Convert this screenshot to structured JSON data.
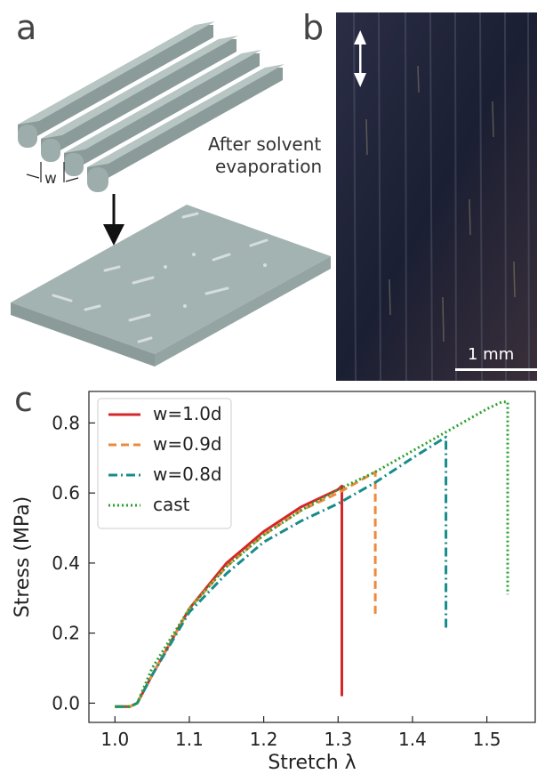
{
  "panels": {
    "a": {
      "label": "a",
      "annotation_line1": "After solvent",
      "annotation_line2": "evaporation",
      "width_symbol": "w"
    },
    "b": {
      "label": "b",
      "scalebar_label": "1 mm"
    },
    "c": {
      "label": "c"
    }
  },
  "colors": {
    "filament": "#a3b3b1",
    "filament_dark": "#8a9b99",
    "micrograph_bg": "#1c2033"
  },
  "chart_data": {
    "type": "line",
    "title": "",
    "xlabel": "Stretch λ",
    "ylabel": "Stress (MPa)",
    "xlim": [
      0.965,
      1.565
    ],
    "ylim": [
      -0.055,
      0.89
    ],
    "xticks": [
      1.0,
      1.1,
      1.2,
      1.3,
      1.4,
      1.5
    ],
    "xtick_labels": [
      "1.0",
      "1.1",
      "1.2",
      "1.3",
      "1.4",
      "1.5"
    ],
    "yticks": [
      0.0,
      0.2,
      0.4,
      0.6,
      0.8
    ],
    "ytick_labels": [
      "0.0",
      "0.2",
      "0.4",
      "0.6",
      "0.8"
    ],
    "grid": false,
    "legend_position": "top-left",
    "series": [
      {
        "name": "w=1.0d",
        "color": "#d62728",
        "style": "solid",
        "x": [
          1.0,
          1.02,
          1.03,
          1.05,
          1.1,
          1.15,
          1.2,
          1.25,
          1.3,
          1.305,
          1.305
        ],
        "y": [
          -0.01,
          -0.01,
          0.0,
          0.08,
          0.27,
          0.4,
          0.49,
          0.56,
          0.61,
          0.62,
          0.02
        ]
      },
      {
        "name": "w=0.9d",
        "color": "#ee8a3c",
        "style": "dashed",
        "x": [
          1.0,
          1.02,
          1.03,
          1.05,
          1.1,
          1.15,
          1.2,
          1.25,
          1.3,
          1.35,
          1.35
        ],
        "y": [
          -0.01,
          -0.01,
          0.0,
          0.08,
          0.27,
          0.39,
          0.48,
          0.55,
          0.6,
          0.66,
          0.25
        ]
      },
      {
        "name": "w=0.8d",
        "color": "#1a8b8b",
        "style": "dashdot",
        "x": [
          1.0,
          1.02,
          1.03,
          1.05,
          1.1,
          1.15,
          1.2,
          1.25,
          1.3,
          1.35,
          1.4,
          1.445,
          1.445
        ],
        "y": [
          -0.01,
          -0.01,
          0.0,
          0.08,
          0.26,
          0.37,
          0.46,
          0.52,
          0.57,
          0.63,
          0.7,
          0.76,
          0.21
        ]
      },
      {
        "name": "cast",
        "color": "#2ca02c",
        "style": "dotted",
        "x": [
          1.0,
          1.02,
          1.03,
          1.05,
          1.1,
          1.15,
          1.2,
          1.25,
          1.3,
          1.35,
          1.4,
          1.45,
          1.5,
          1.52,
          1.528,
          1.528
        ],
        "y": [
          -0.01,
          -0.01,
          0.0,
          0.1,
          0.27,
          0.39,
          0.48,
          0.55,
          0.61,
          0.66,
          0.72,
          0.78,
          0.84,
          0.86,
          0.86,
          0.31
        ]
      }
    ]
  }
}
